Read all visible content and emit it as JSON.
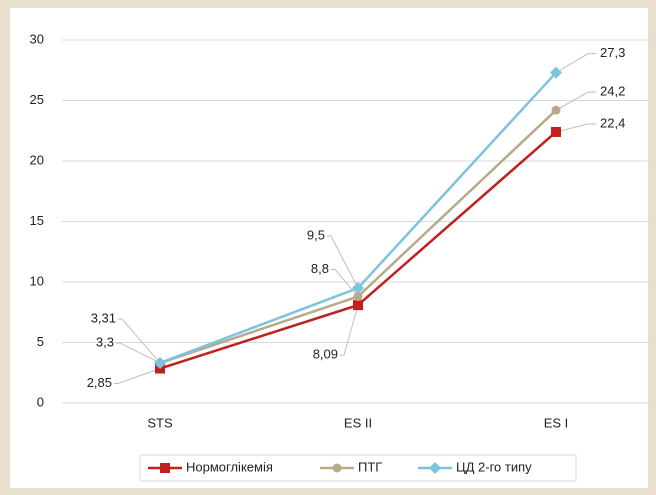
{
  "chart_data": {
    "type": "line",
    "categories": [
      "STS",
      "ES II",
      "ES I"
    ],
    "series": [
      {
        "name": "Нормоглікемія",
        "color": "#c0201e",
        "marker": "square",
        "values": [
          2.85,
          8.09,
          22.4
        ],
        "value_labels": [
          "2,85",
          "8,09",
          "22,4"
        ]
      },
      {
        "name": "ПТГ",
        "color": "#b8a988",
        "marker": "circle",
        "values": [
          3.3,
          8.8,
          24.2
        ],
        "value_labels": [
          "3,3",
          "8,8",
          "24,2"
        ]
      },
      {
        "name": "ЦД 2-го типу",
        "color": "#7cc4de",
        "marker": "diamond",
        "values": [
          3.31,
          9.5,
          27.3
        ],
        "value_labels": [
          "3,31",
          "9,5",
          "27,3"
        ]
      }
    ],
    "ylim": [
      0,
      30
    ],
    "yticks": [
      0,
      5,
      10,
      15,
      20,
      25,
      30
    ],
    "grid": true,
    "legend": "bottom"
  }
}
